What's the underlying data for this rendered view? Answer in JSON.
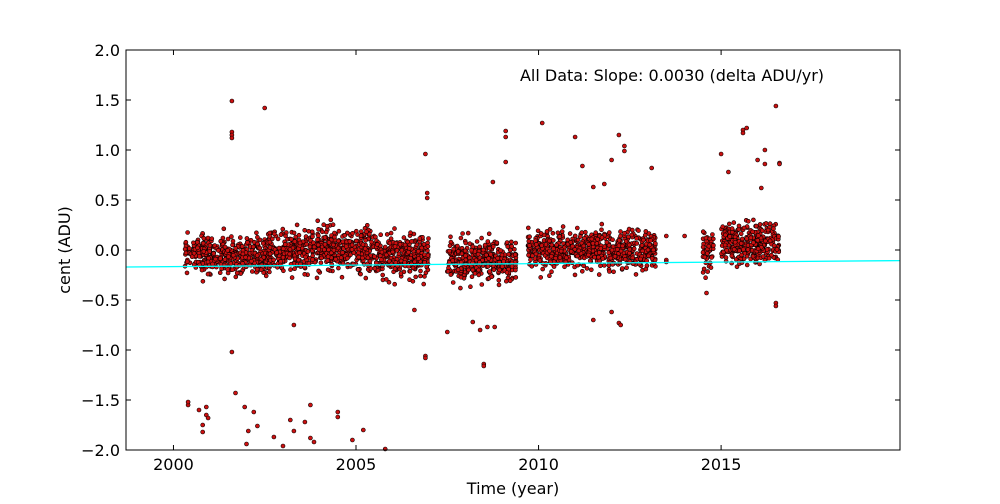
{
  "chart_data": {
    "type": "scatter",
    "title": "",
    "xlabel": "Time (year)",
    "ylabel": "cent (ADU)",
    "xlim": [
      1998.7,
      2019.9
    ],
    "ylim": [
      -2.0,
      2.0
    ],
    "xticks": [
      2000,
      2005,
      2010,
      2015
    ],
    "xtick_labels": [
      "2000",
      "2005",
      "2010",
      "2015"
    ],
    "yticks": [
      -2.0,
      -1.5,
      -1.0,
      -0.5,
      0.0,
      0.5,
      1.0,
      1.5,
      2.0
    ],
    "ytick_labels": [
      "−2.0",
      "−1.5",
      "−1.0",
      "−0.5",
      "0.0",
      "0.5",
      "1.0",
      "1.5",
      "2.0"
    ],
    "grid": false,
    "annotation": "All Data: Slope:  0.0030 (delta ADU/yr)",
    "colors": {
      "points": "#cc1010",
      "point_edge": "#000000",
      "fit_line": "#00ffff"
    },
    "fit_line": {
      "slope": 0.003,
      "x": [
        1998.7,
        2019.9
      ],
      "y": [
        -0.17,
        -0.106
      ]
    },
    "clusters": [
      {
        "x_range": [
          2000.3,
          2002.6
        ],
        "y_center": -0.05,
        "y_spread": 0.26,
        "n": 420
      },
      {
        "x_range": [
          2002.6,
          2005.5
        ],
        "y_center": 0.0,
        "y_spread": 0.28,
        "n": 560
      },
      {
        "x_range": [
          2005.5,
          2007.0
        ],
        "y_center": -0.06,
        "y_spread": 0.26,
        "n": 300
      },
      {
        "x_range": [
          2007.5,
          2009.4
        ],
        "y_center": -0.1,
        "y_spread": 0.25,
        "n": 360
      },
      {
        "x_range": [
          2009.7,
          2013.2
        ],
        "y_center": 0.0,
        "y_spread": 0.25,
        "n": 620
      },
      {
        "x_range": [
          2014.5,
          2014.8
        ],
        "y_center": 0.0,
        "y_spread": 0.25,
        "n": 50
      },
      {
        "x_range": [
          2015.0,
          2016.6
        ],
        "y_center": 0.08,
        "y_spread": 0.24,
        "n": 320
      }
    ],
    "outliers": [
      [
        2000.4,
        -1.55
      ],
      [
        2000.4,
        -1.52
      ],
      [
        2000.7,
        -1.6
      ],
      [
        2000.8,
        -1.75
      ],
      [
        2000.8,
        -1.82
      ],
      [
        2000.9,
        -1.57
      ],
      [
        2000.9,
        -1.65
      ],
      [
        2000.95,
        -1.68
      ],
      [
        2001.6,
        1.49
      ],
      [
        2001.6,
        1.18
      ],
      [
        2001.6,
        1.15
      ],
      [
        2001.6,
        1.12
      ],
      [
        2001.6,
        -1.02
      ],
      [
        2001.7,
        -1.43
      ],
      [
        2001.95,
        -1.57
      ],
      [
        2002.0,
        -1.94
      ],
      [
        2002.05,
        -1.81
      ],
      [
        2002.2,
        -1.62
      ],
      [
        2002.3,
        -1.76
      ],
      [
        2002.5,
        1.42
      ],
      [
        2002.75,
        -1.87
      ],
      [
        2003.0,
        -1.96
      ],
      [
        2003.2,
        -1.7
      ],
      [
        2003.3,
        -1.81
      ],
      [
        2003.3,
        -0.75
      ],
      [
        2003.6,
        -1.72
      ],
      [
        2003.75,
        -1.55
      ],
      [
        2003.75,
        -1.88
      ],
      [
        2003.85,
        -1.92
      ],
      [
        2004.5,
        -1.62
      ],
      [
        2004.5,
        -1.67
      ],
      [
        2004.9,
        -1.9
      ],
      [
        2005.2,
        -1.8
      ],
      [
        2005.8,
        -1.99
      ],
      [
        2006.9,
        0.96
      ],
      [
        2006.95,
        0.57
      ],
      [
        2006.95,
        0.52
      ],
      [
        2006.9,
        -1.06
      ],
      [
        2006.9,
        -1.08
      ],
      [
        2006.6,
        -0.6
      ],
      [
        2007.5,
        -0.82
      ],
      [
        2008.2,
        -0.72
      ],
      [
        2008.4,
        -0.8
      ],
      [
        2008.6,
        -0.77
      ],
      [
        2008.75,
        0.68
      ],
      [
        2008.8,
        -0.77
      ],
      [
        2008.5,
        -1.14
      ],
      [
        2008.5,
        -1.16
      ],
      [
        2009.1,
        1.19
      ],
      [
        2009.1,
        1.13
      ],
      [
        2009.1,
        0.88
      ],
      [
        2010.1,
        1.27
      ],
      [
        2011.0,
        1.13
      ],
      [
        2011.2,
        0.84
      ],
      [
        2011.5,
        0.63
      ],
      [
        2011.5,
        -0.7
      ],
      [
        2011.8,
        0.66
      ],
      [
        2012.0,
        0.9
      ],
      [
        2012.2,
        1.15
      ],
      [
        2012.35,
        1.04
      ],
      [
        2012.35,
        0.99
      ],
      [
        2012.2,
        -0.73
      ],
      [
        2012.25,
        -0.75
      ],
      [
        2012.0,
        -0.62
      ],
      [
        2013.1,
        0.82
      ],
      [
        2013.5,
        0.14
      ],
      [
        2013.5,
        -0.1
      ],
      [
        2013.5,
        -0.12
      ],
      [
        2014.0,
        0.14
      ],
      [
        2015.0,
        0.96
      ],
      [
        2015.2,
        0.78
      ],
      [
        2015.6,
        1.2
      ],
      [
        2015.7,
        1.22
      ],
      [
        2015.6,
        1.17
      ],
      [
        2016.0,
        0.9
      ],
      [
        2016.1,
        0.62
      ],
      [
        2016.2,
        0.86
      ],
      [
        2016.2,
        1.0
      ],
      [
        2016.5,
        1.44
      ],
      [
        2016.6,
        0.87
      ],
      [
        2016.6,
        0.86
      ],
      [
        2016.5,
        -0.53
      ],
      [
        2016.5,
        -0.56
      ],
      [
        2014.6,
        -0.43
      ]
    ]
  }
}
